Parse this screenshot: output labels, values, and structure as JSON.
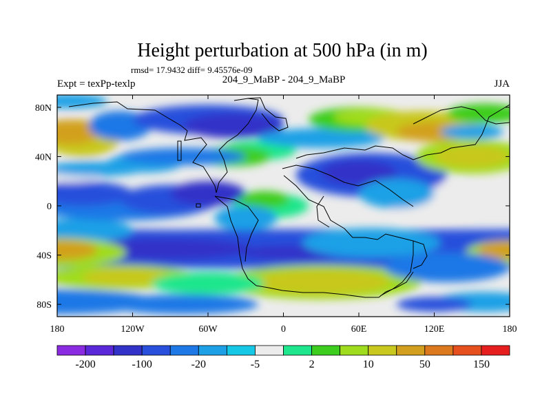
{
  "chart_data": {
    "type": "heatmap",
    "title": "Height perturbation at 500 hPa (in m)",
    "stats_label": "rmsd= 17.9432 diff= 9.45576e-09",
    "left_label": "Expt = texPp-texlp",
    "center_label": "204_9_MaBP - 204_9_MaBP",
    "right_label": "JJA",
    "x_axis": {
      "range": [
        -180,
        180
      ],
      "ticks": [
        -180,
        -120,
        -60,
        0,
        60,
        120,
        180
      ],
      "tick_labels": [
        "180",
        "120W",
        "60W",
        "0",
        "60E",
        "120E",
        "180"
      ]
    },
    "y_axis": {
      "range": [
        -90,
        90
      ],
      "ticks": [
        80,
        40,
        0,
        -40,
        -80
      ],
      "tick_labels": [
        "80N",
        "40N",
        "0",
        "40S",
        "80S"
      ]
    },
    "colorbar": {
      "levels_labeled": [
        "-200",
        "-100",
        "-20",
        "-5",
        "2",
        "10",
        "50",
        "150"
      ],
      "colors": [
        "#8a2be2",
        "#5a28d8",
        "#3232c8",
        "#2850dc",
        "#1e78e6",
        "#1ea0e6",
        "#14c8e6",
        "#ececec",
        "#1ee68c",
        "#3ccd1e",
        "#a0dc1e",
        "#c8c81e",
        "#d2a01e",
        "#dc781e",
        "#e6501e",
        "#e61e1e"
      ]
    },
    "field_colors": {
      "very_negative": "#3232c8",
      "negative": "#2850dc",
      "slightly_negative": "#1e78e6",
      "weak_negative": "#1ea0e6",
      "near_zero_negative": "#14c8e6",
      "zero": "#ececec",
      "weak_positive": "#1ee68c",
      "slightly_positive": "#3ccd1e",
      "positive": "#a0dc1e",
      "more_positive": "#c8c81e",
      "strong_positive": "#d2a01e"
    }
  }
}
